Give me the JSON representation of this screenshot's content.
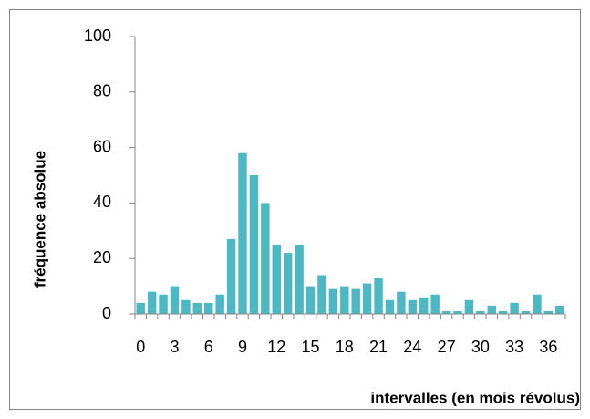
{
  "chart_data": {
    "type": "bar",
    "xlabel": "intervalles  (en mois révolus)",
    "ylabel": "fréquence absolue",
    "categories": [
      "0",
      null,
      null,
      "3",
      null,
      null,
      "6",
      null,
      null,
      "9",
      null,
      null,
      "12",
      null,
      null,
      "15",
      null,
      null,
      "18",
      null,
      null,
      "21",
      null,
      null,
      "24",
      null,
      null,
      "27",
      null,
      null,
      "30",
      null,
      null,
      "33",
      null,
      null,
      "36",
      null
    ],
    "values": [
      4,
      8,
      7,
      10,
      5,
      4,
      4,
      7,
      27,
      58,
      50,
      40,
      25,
      22,
      25,
      10,
      14,
      9,
      10,
      9,
      11,
      13,
      5,
      8,
      5,
      6,
      7,
      1,
      1,
      5,
      1,
      3,
      1,
      4,
      1,
      7,
      1,
      3
    ],
    "color": "#4bb8c4",
    "ylim": [
      0,
      100
    ],
    "yticks": [
      0,
      20,
      40,
      60,
      80,
      100
    ],
    "grid": false
  }
}
